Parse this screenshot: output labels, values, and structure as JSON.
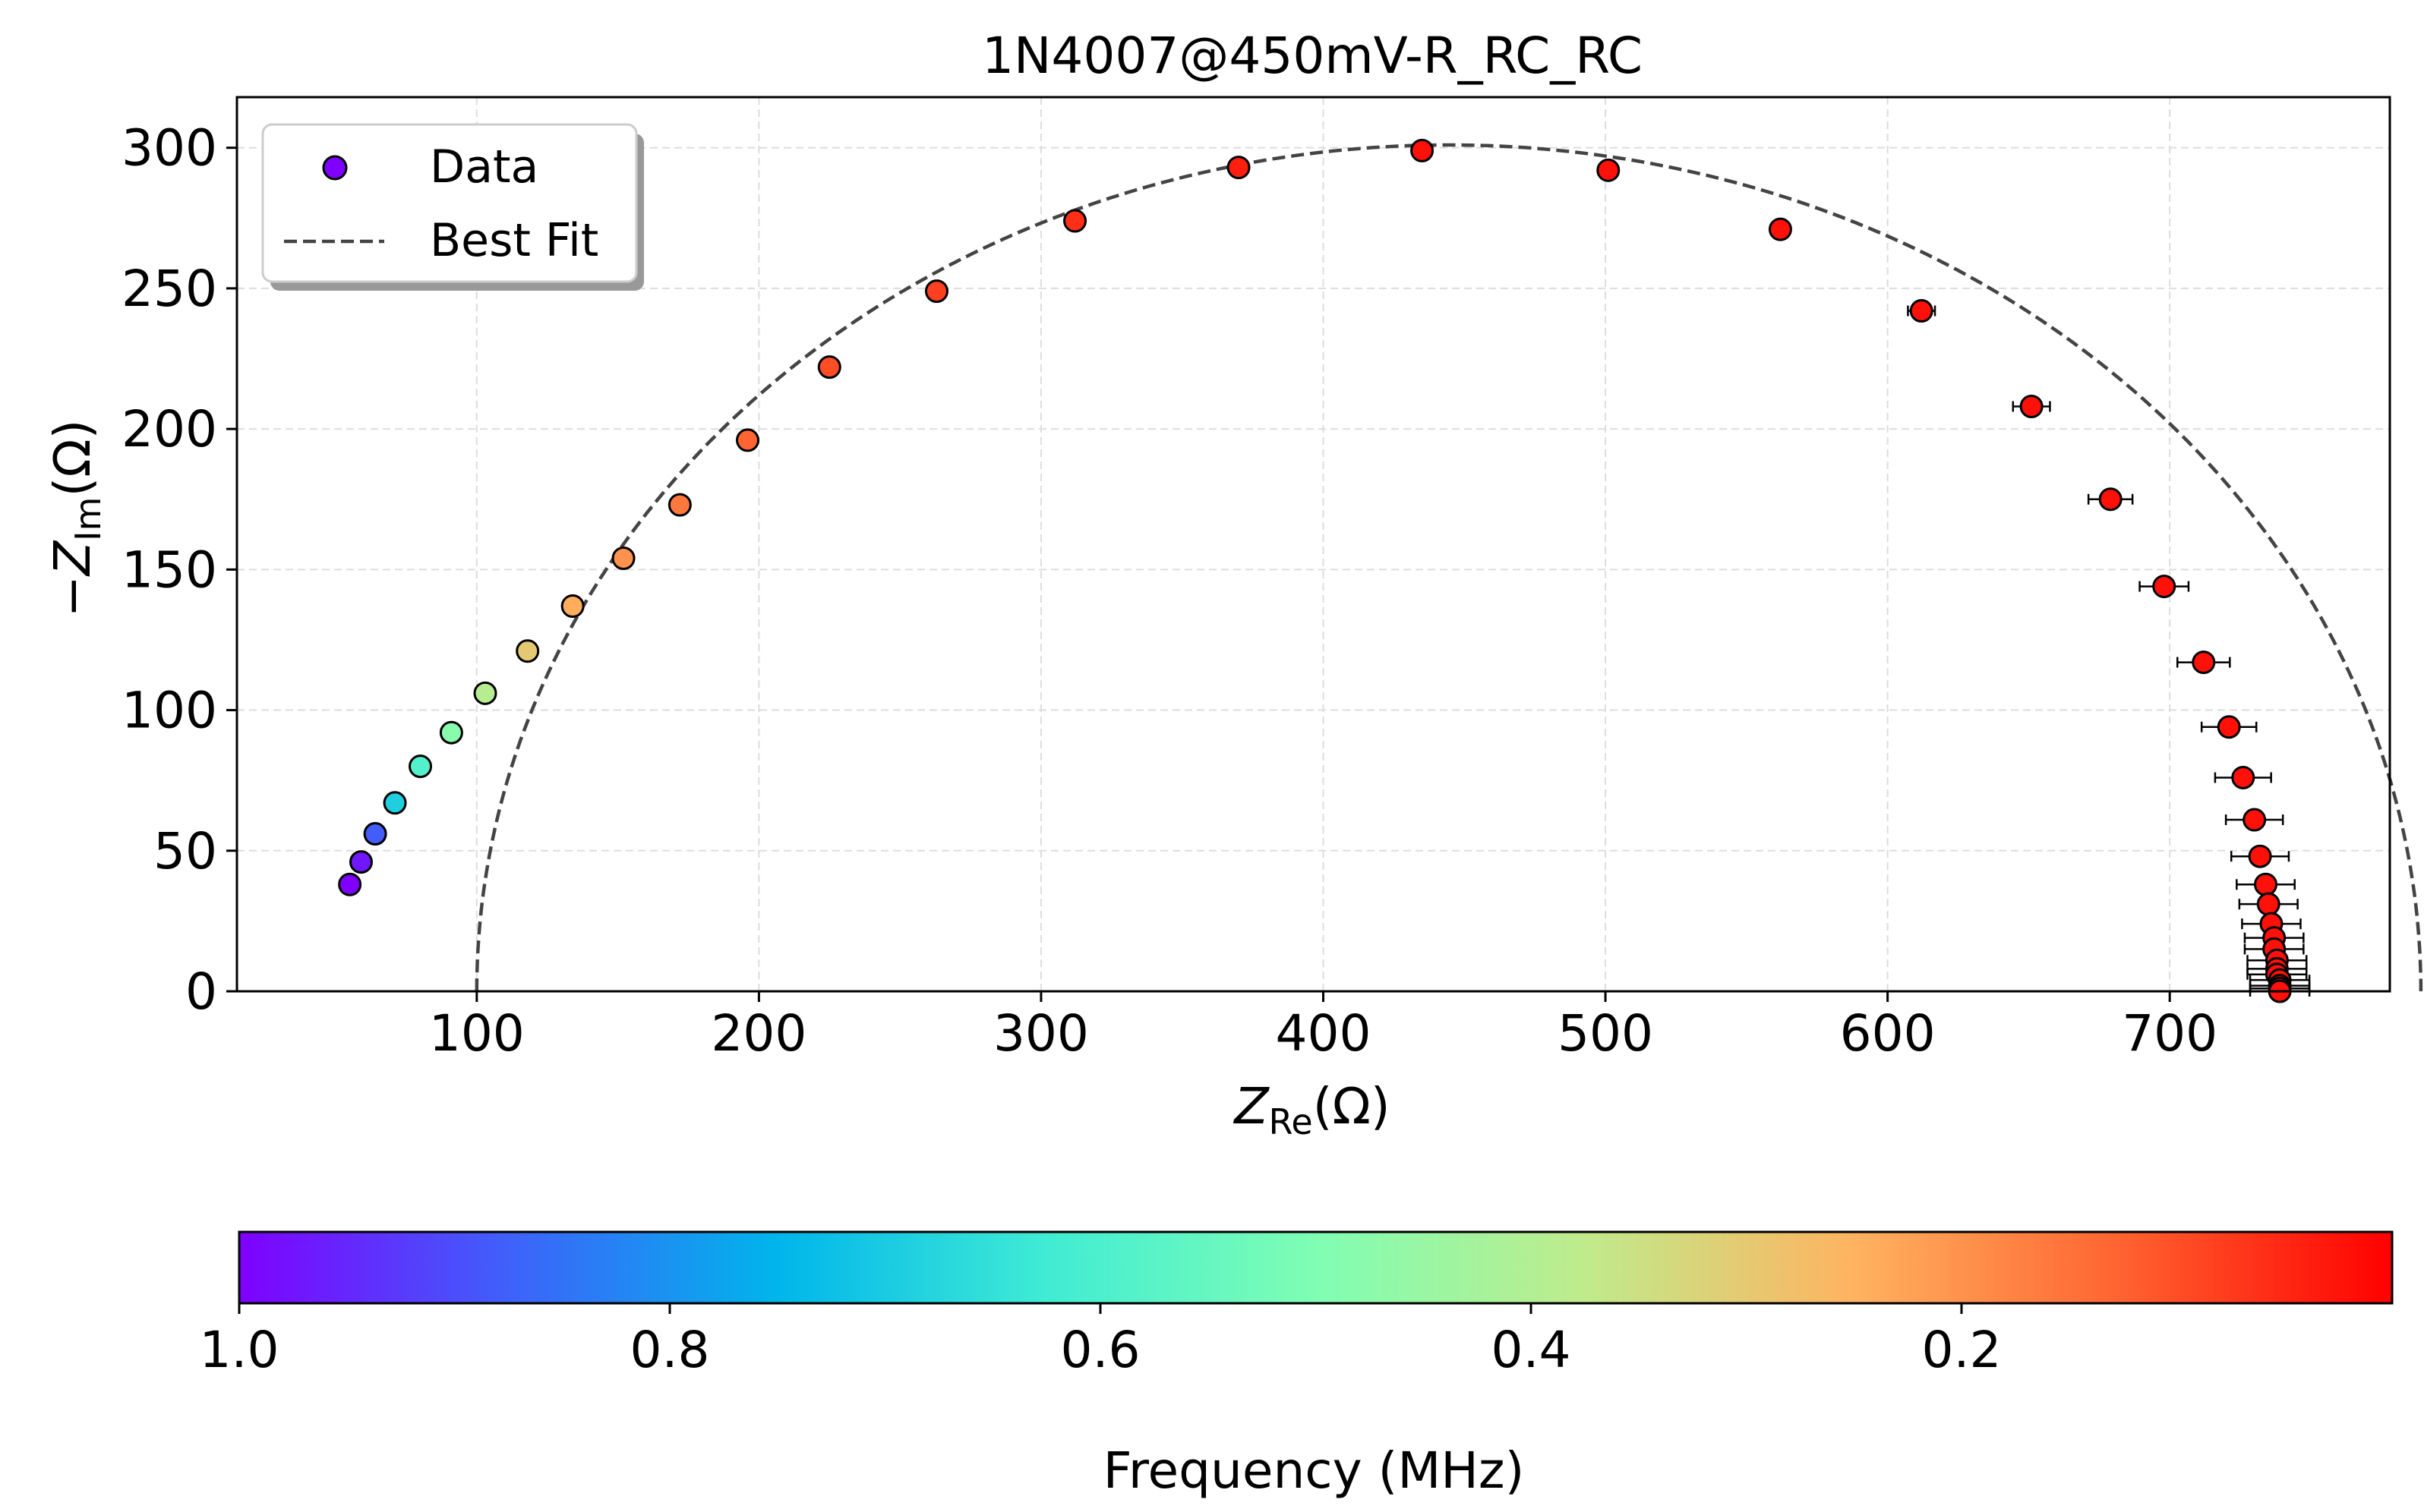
{
  "chart_data": {
    "type": "scatter",
    "title": "1N4007@450mV-R_RC_RC",
    "xlabel": {
      "var": "Z",
      "sub": "Re",
      "unit": "(Ω)"
    },
    "ylabel": {
      "neg": "−",
      "var": "Z",
      "sub": "Im",
      "unit": "(Ω)"
    },
    "xlim": [
      15,
      778
    ],
    "ylim": [
      0,
      318
    ],
    "xticks": [
      100,
      200,
      300,
      400,
      500,
      600,
      700
    ],
    "yticks": [
      0,
      50,
      100,
      150,
      200,
      250,
      300
    ],
    "grid": true,
    "legend": {
      "position": "top-left",
      "entries": [
        {
          "label": "Data",
          "kind": "marker",
          "color": "#7f00ff"
        },
        {
          "label": "Best Fit",
          "kind": "dashed-line",
          "color": "#444444"
        }
      ]
    },
    "fit": {
      "R0": 50.5,
      "R_total": 739.5,
      "semicircle_center": 444.5,
      "semicircle_height": 301,
      "style": "dashed",
      "color": "#444444"
    },
    "series": [
      {
        "name": "Data",
        "points": [
          {
            "x": 55,
            "y": 38,
            "f": 1.0
          },
          {
            "x": 59,
            "y": 46,
            "f": 0.97
          },
          {
            "x": 64,
            "y": 56,
            "f": 0.88
          },
          {
            "x": 71,
            "y": 67,
            "f": 0.69
          },
          {
            "x": 80,
            "y": 80,
            "f": 0.59
          },
          {
            "x": 91,
            "y": 92,
            "f": 0.48
          },
          {
            "x": 103,
            "y": 106,
            "f": 0.39
          },
          {
            "x": 118,
            "y": 121,
            "f": 0.3
          },
          {
            "x": 134,
            "y": 137,
            "f": 0.24
          },
          {
            "x": 152,
            "y": 154,
            "f": 0.2
          },
          {
            "x": 172,
            "y": 173,
            "f": 0.16
          },
          {
            "x": 196,
            "y": 196,
            "f": 0.13
          },
          {
            "x": 225,
            "y": 222,
            "f": 0.1
          },
          {
            "x": 263,
            "y": 249,
            "f": 0.08
          },
          {
            "x": 312,
            "y": 274,
            "f": 0.06
          },
          {
            "x": 370,
            "y": 293,
            "f": 0.04
          },
          {
            "x": 435,
            "y": 299,
            "f": 0.02
          },
          {
            "x": 501,
            "y": 292,
            "f": 0.02
          },
          {
            "x": 562,
            "y": 271,
            "f": 0.02
          },
          {
            "x": 612,
            "y": 242,
            "f": 0.02
          },
          {
            "x": 651,
            "y": 208,
            "f": 0.02
          },
          {
            "x": 679,
            "y": 175,
            "f": 0.02
          },
          {
            "x": 698,
            "y": 144,
            "f": 0.02
          },
          {
            "x": 712,
            "y": 117,
            "f": 0.02
          },
          {
            "x": 721,
            "y": 94,
            "f": 0.02
          },
          {
            "x": 726,
            "y": 76,
            "f": 0.02
          },
          {
            "x": 730,
            "y": 61,
            "f": 0.02
          },
          {
            "x": 732,
            "y": 48,
            "f": 0.02
          },
          {
            "x": 734,
            "y": 38,
            "f": 0.02
          },
          {
            "x": 735,
            "y": 31,
            "f": 0.02
          },
          {
            "x": 736,
            "y": 24,
            "f": 0.02
          },
          {
            "x": 737,
            "y": 19,
            "f": 0.02
          },
          {
            "x": 737,
            "y": 15,
            "f": 0.02
          },
          {
            "x": 738,
            "y": 11,
            "f": 0.02
          },
          {
            "x": 738,
            "y": 8,
            "f": 0.02
          },
          {
            "x": 738,
            "y": 6,
            "f": 0.02
          },
          {
            "x": 739,
            "y": 4,
            "f": 0.02
          },
          {
            "x": 739,
            "y": 2,
            "f": 0.02
          },
          {
            "x": 739,
            "y": 1,
            "f": 0.02
          },
          {
            "x": 739,
            "y": 0,
            "f": 0.02
          }
        ]
      }
    ],
    "colorbar": {
      "label": "Frequency (MHz)",
      "colormap": "rainbow",
      "range": [
        1.0,
        0.0
      ],
      "ticks": [
        "1.0",
        "0.8",
        "0.6",
        "0.4",
        "0.2"
      ],
      "colors": [
        "#7f00ff",
        "#3f61fa",
        "#00b5eb",
        "#40ecd4",
        "#7ffeb3",
        "#bfeb8c",
        "#ffb360",
        "#ff6230",
        "#ff0000"
      ]
    }
  }
}
